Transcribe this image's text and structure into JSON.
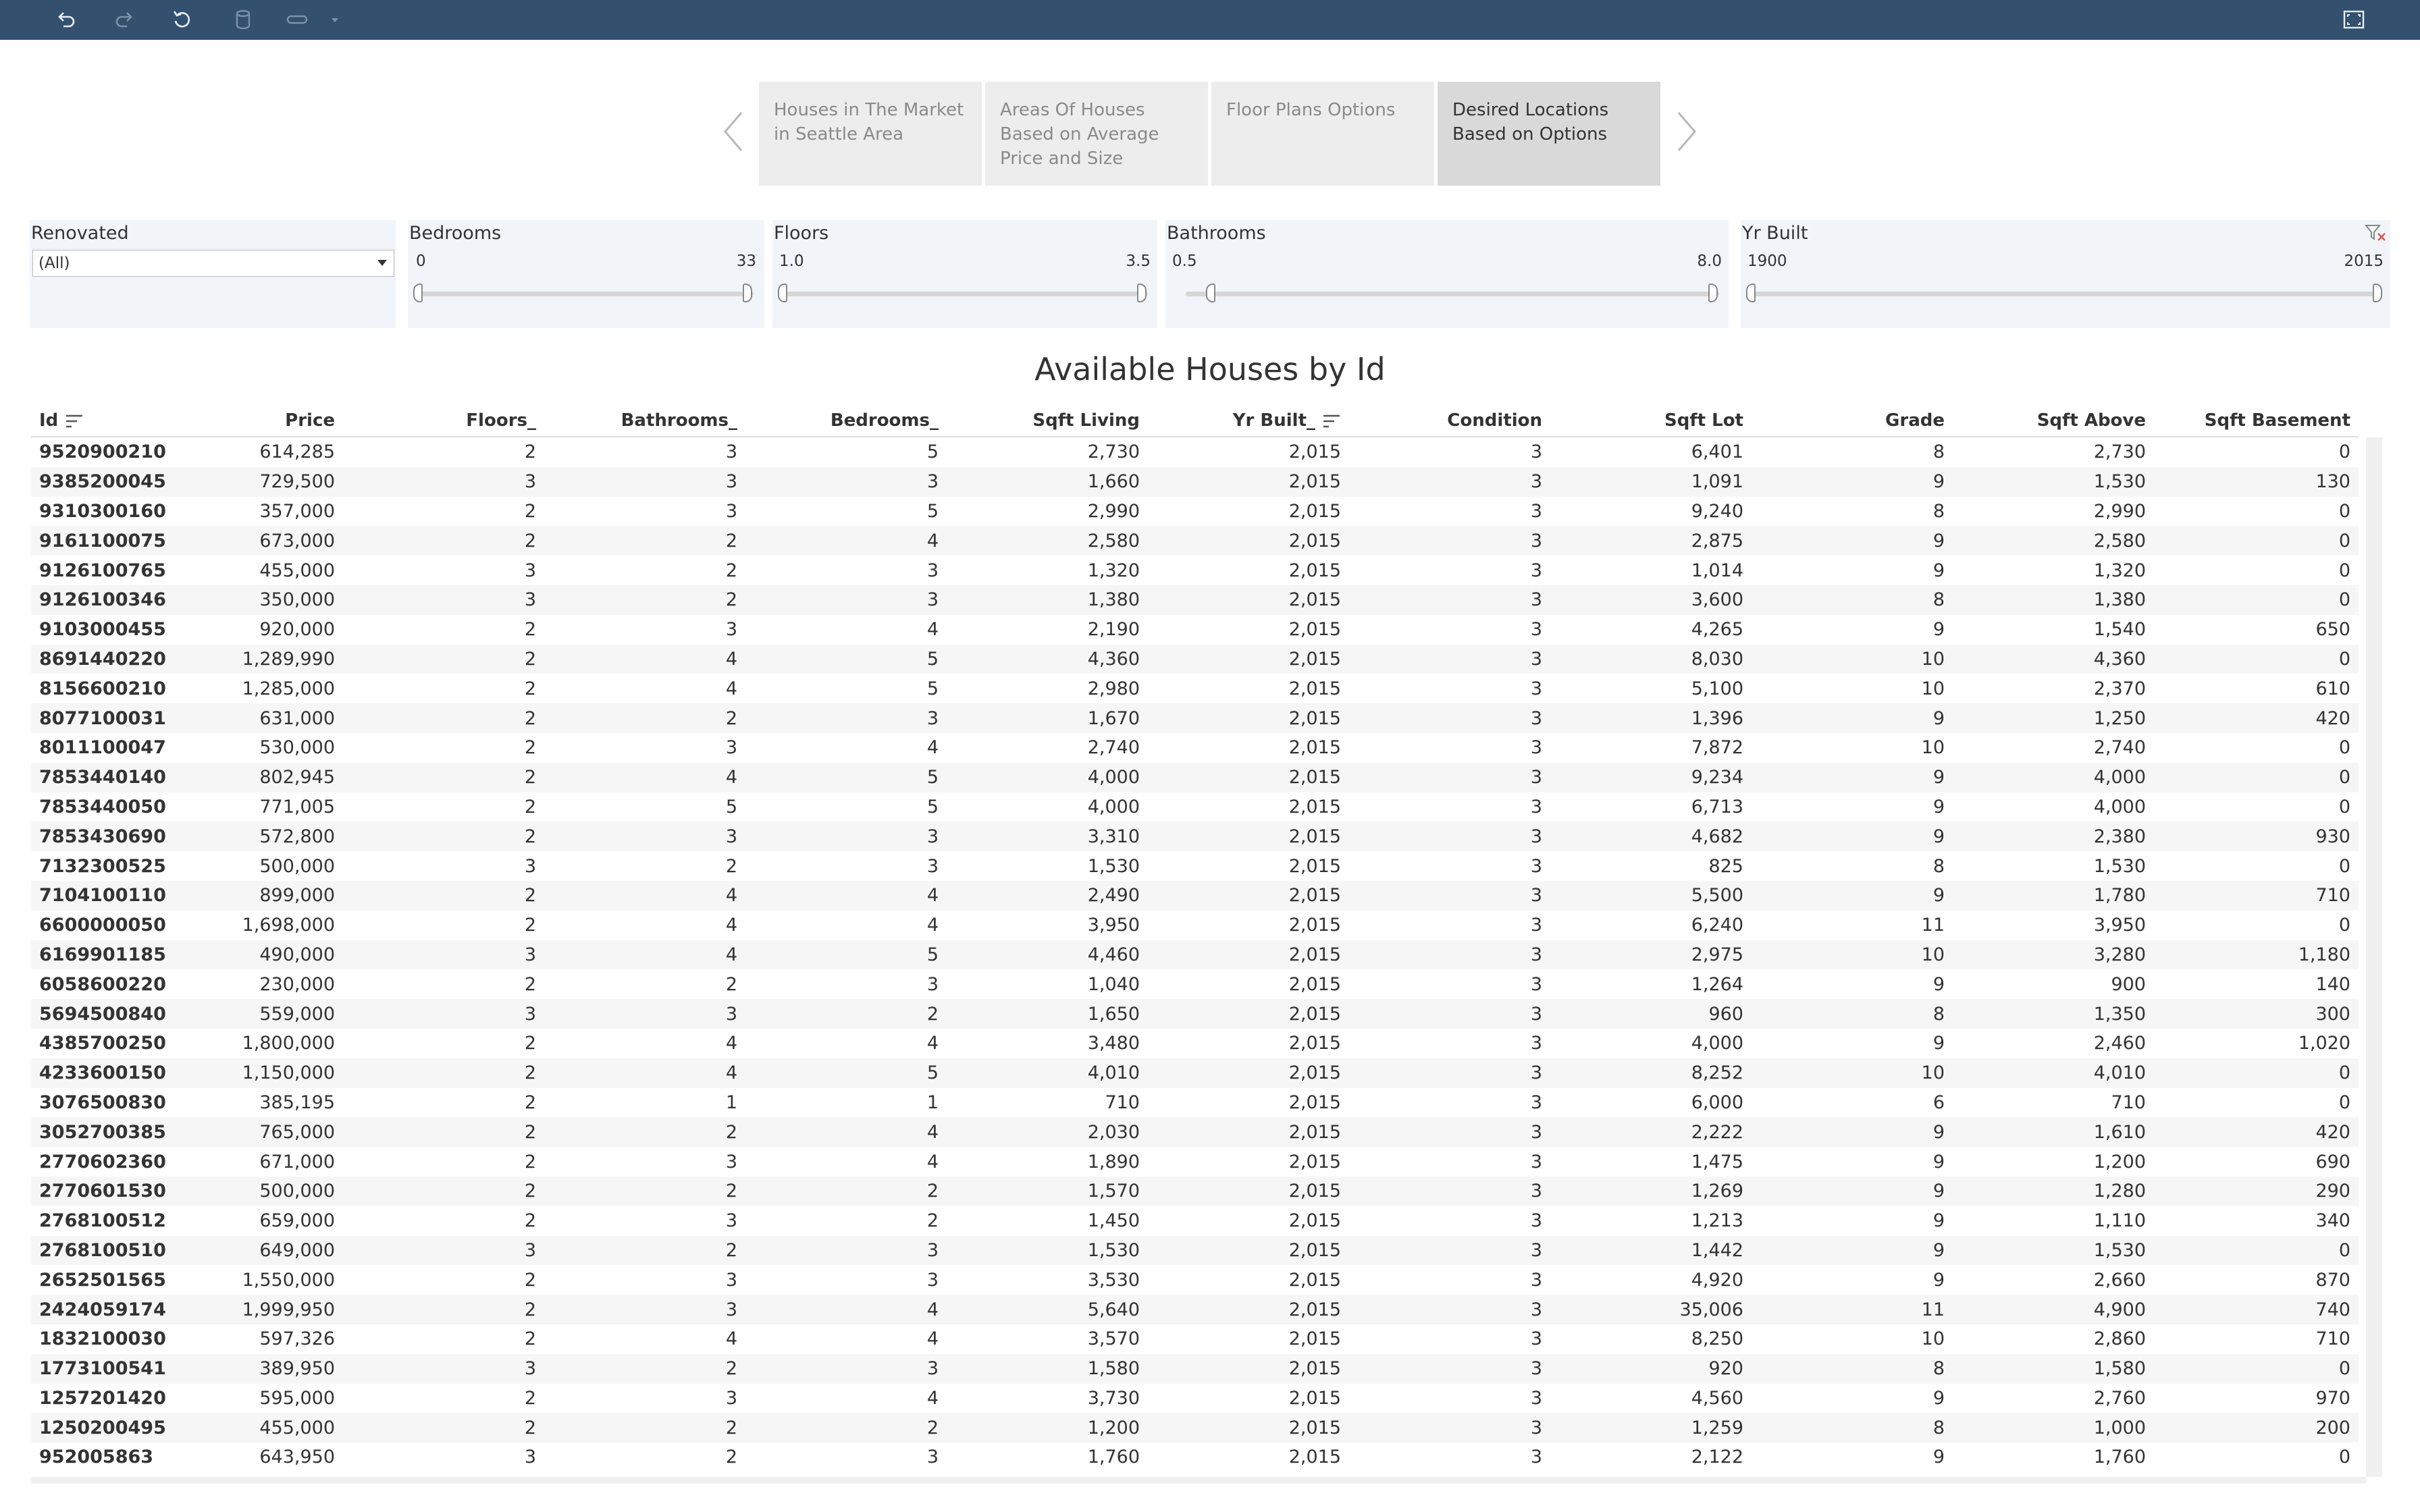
{
  "toolbar": {
    "icons": [
      "undo-icon",
      "redo-icon",
      "revert-icon",
      "data-source-icon",
      "pause-updates-icon",
      "dropdown-caret-icon",
      "fullscreen-icon"
    ]
  },
  "story": {
    "tabs": [
      {
        "label": "Houses in The Market in Seattle Area",
        "active": false
      },
      {
        "label": "Areas Of Houses Based on Average Price and Size",
        "active": false
      },
      {
        "label": "Floor Plans Options",
        "active": false
      },
      {
        "label": "Desired Locations Based on Options",
        "active": true
      }
    ]
  },
  "filters": {
    "renovated": {
      "title": "Renovated",
      "value": "(All)"
    },
    "bedrooms": {
      "title": "Bedrooms",
      "min": "0",
      "max": "33"
    },
    "floors": {
      "title": "Floors",
      "min": "1.0",
      "max": "3.5"
    },
    "bathrooms": {
      "title": "Bathrooms",
      "min": "0.5",
      "max": "8.0"
    },
    "yr_built": {
      "title": "Yr Built",
      "min": "1900",
      "max": "2015"
    }
  },
  "sheet": {
    "title": "Available Houses by Id",
    "columns": [
      "Id",
      "Price",
      "Floors_",
      "Bathrooms_",
      "Bedrooms_",
      "Sqft Living",
      "Yr Built_",
      "Condition",
      "Sqft Lot",
      "Grade",
      "Sqft Above",
      "Sqft Basement"
    ],
    "rows": [
      [
        "9520900210",
        "614,285",
        "2",
        "3",
        "5",
        "2,730",
        "2,015",
        "3",
        "6,401",
        "8",
        "2,730",
        "0"
      ],
      [
        "9385200045",
        "729,500",
        "3",
        "3",
        "3",
        "1,660",
        "2,015",
        "3",
        "1,091",
        "9",
        "1,530",
        "130"
      ],
      [
        "9310300160",
        "357,000",
        "2",
        "3",
        "5",
        "2,990",
        "2,015",
        "3",
        "9,240",
        "8",
        "2,990",
        "0"
      ],
      [
        "9161100075",
        "673,000",
        "2",
        "2",
        "4",
        "2,580",
        "2,015",
        "3",
        "2,875",
        "9",
        "2,580",
        "0"
      ],
      [
        "9126100765",
        "455,000",
        "3",
        "2",
        "3",
        "1,320",
        "2,015",
        "3",
        "1,014",
        "9",
        "1,320",
        "0"
      ],
      [
        "9126100346",
        "350,000",
        "3",
        "2",
        "3",
        "1,380",
        "2,015",
        "3",
        "3,600",
        "8",
        "1,380",
        "0"
      ],
      [
        "9103000455",
        "920,000",
        "2",
        "3",
        "4",
        "2,190",
        "2,015",
        "3",
        "4,265",
        "9",
        "1,540",
        "650"
      ],
      [
        "8691440220",
        "1,289,990",
        "2",
        "4",
        "5",
        "4,360",
        "2,015",
        "3",
        "8,030",
        "10",
        "4,360",
        "0"
      ],
      [
        "8156600210",
        "1,285,000",
        "2",
        "4",
        "5",
        "2,980",
        "2,015",
        "3",
        "5,100",
        "10",
        "2,370",
        "610"
      ],
      [
        "8077100031",
        "631,000",
        "2",
        "2",
        "3",
        "1,670",
        "2,015",
        "3",
        "1,396",
        "9",
        "1,250",
        "420"
      ],
      [
        "8011100047",
        "530,000",
        "2",
        "3",
        "4",
        "2,740",
        "2,015",
        "3",
        "7,872",
        "10",
        "2,740",
        "0"
      ],
      [
        "7853440140",
        "802,945",
        "2",
        "4",
        "5",
        "4,000",
        "2,015",
        "3",
        "9,234",
        "9",
        "4,000",
        "0"
      ],
      [
        "7853440050",
        "771,005",
        "2",
        "5",
        "5",
        "4,000",
        "2,015",
        "3",
        "6,713",
        "9",
        "4,000",
        "0"
      ],
      [
        "7853430690",
        "572,800",
        "2",
        "3",
        "3",
        "3,310",
        "2,015",
        "3",
        "4,682",
        "9",
        "2,380",
        "930"
      ],
      [
        "7132300525",
        "500,000",
        "3",
        "2",
        "3",
        "1,530",
        "2,015",
        "3",
        "825",
        "8",
        "1,530",
        "0"
      ],
      [
        "7104100110",
        "899,000",
        "2",
        "4",
        "4",
        "2,490",
        "2,015",
        "3",
        "5,500",
        "9",
        "1,780",
        "710"
      ],
      [
        "6600000050",
        "1,698,000",
        "2",
        "4",
        "4",
        "3,950",
        "2,015",
        "3",
        "6,240",
        "11",
        "3,950",
        "0"
      ],
      [
        "6169901185",
        "490,000",
        "3",
        "4",
        "5",
        "4,460",
        "2,015",
        "3",
        "2,975",
        "10",
        "3,280",
        "1,180"
      ],
      [
        "6058600220",
        "230,000",
        "2",
        "2",
        "3",
        "1,040",
        "2,015",
        "3",
        "1,264",
        "9",
        "900",
        "140"
      ],
      [
        "5694500840",
        "559,000",
        "3",
        "3",
        "2",
        "1,650",
        "2,015",
        "3",
        "960",
        "8",
        "1,350",
        "300"
      ],
      [
        "4385700250",
        "1,800,000",
        "2",
        "4",
        "4",
        "3,480",
        "2,015",
        "3",
        "4,000",
        "9",
        "2,460",
        "1,020"
      ],
      [
        "4233600150",
        "1,150,000",
        "2",
        "4",
        "5",
        "4,010",
        "2,015",
        "3",
        "8,252",
        "10",
        "4,010",
        "0"
      ],
      [
        "3076500830",
        "385,195",
        "2",
        "1",
        "1",
        "710",
        "2,015",
        "3",
        "6,000",
        "6",
        "710",
        "0"
      ],
      [
        "3052700385",
        "765,000",
        "2",
        "2",
        "4",
        "2,030",
        "2,015",
        "3",
        "2,222",
        "9",
        "1,610",
        "420"
      ],
      [
        "2770602360",
        "671,000",
        "2",
        "3",
        "4",
        "1,890",
        "2,015",
        "3",
        "1,475",
        "9",
        "1,200",
        "690"
      ],
      [
        "2770601530",
        "500,000",
        "2",
        "2",
        "2",
        "1,570",
        "2,015",
        "3",
        "1,269",
        "9",
        "1,280",
        "290"
      ],
      [
        "2768100512",
        "659,000",
        "2",
        "3",
        "2",
        "1,450",
        "2,015",
        "3",
        "1,213",
        "9",
        "1,110",
        "340"
      ],
      [
        "2768100510",
        "649,000",
        "3",
        "2",
        "3",
        "1,530",
        "2,015",
        "3",
        "1,442",
        "9",
        "1,530",
        "0"
      ],
      [
        "2652501565",
        "1,550,000",
        "2",
        "3",
        "3",
        "3,530",
        "2,015",
        "3",
        "4,920",
        "9",
        "2,660",
        "870"
      ],
      [
        "2424059174",
        "1,999,950",
        "2",
        "3",
        "4",
        "5,640",
        "2,015",
        "3",
        "35,006",
        "11",
        "4,900",
        "740"
      ],
      [
        "1832100030",
        "597,326",
        "2",
        "4",
        "4",
        "3,570",
        "2,015",
        "3",
        "8,250",
        "10",
        "2,860",
        "710"
      ],
      [
        "1773100541",
        "389,950",
        "3",
        "2",
        "3",
        "1,580",
        "2,015",
        "3",
        "920",
        "8",
        "1,580",
        "0"
      ],
      [
        "1257201420",
        "595,000",
        "2",
        "3",
        "4",
        "3,730",
        "2,015",
        "3",
        "4,560",
        "9",
        "2,760",
        "970"
      ],
      [
        "1250200495",
        "455,000",
        "2",
        "2",
        "2",
        "1,200",
        "2,015",
        "3",
        "1,259",
        "8",
        "1,000",
        "200"
      ],
      [
        "952005863",
        "643,950",
        "3",
        "2",
        "3",
        "1,760",
        "2,015",
        "3",
        "2,122",
        "9",
        "1,760",
        "0"
      ]
    ]
  }
}
